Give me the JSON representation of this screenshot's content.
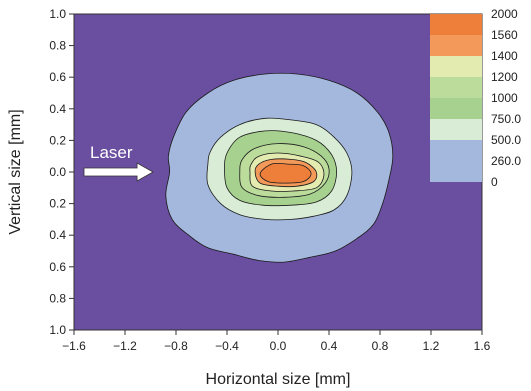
{
  "chart_data": {
    "type": "heatmap",
    "subtype": "filled-contour",
    "title": "",
    "xlabel": "Horizontal size [mm]",
    "ylabel": "Vertical size [mm]",
    "xlim": [
      -1.6,
      1.6
    ],
    "ylim": [
      -1.0,
      1.0
    ],
    "x_ticks": [
      "-1.6",
      "-1.2",
      "-0.8",
      "-0.4",
      "0.0",
      "0.4",
      "0.8",
      "1.2",
      "1.6"
    ],
    "y_ticks": [
      "1.0",
      "0.8",
      "0.6",
      "0.4",
      "0.2",
      "0.0",
      "0.2",
      "0.4",
      "0.6",
      "0.8",
      "1.0"
    ],
    "grid": false,
    "legend_position": "top-right",
    "levels": [
      {
        "label": "2000",
        "color": "#ee7f3b"
      },
      {
        "label": "1560",
        "color": "#f39a5b"
      },
      {
        "label": "1400",
        "color": "#e3ebb0"
      },
      {
        "label": "1200",
        "color": "#bcdc9c"
      },
      {
        "label": "1000",
        "color": "#a6d18f"
      },
      {
        "label": "750.0",
        "color": "#d8ecd6"
      },
      {
        "label": "500.0",
        "color": "#a4b7dc"
      },
      {
        "label": "260.0",
        "color": "#a4b7dc"
      },
      {
        "label": "0",
        "color": "#6a4ea0"
      }
    ],
    "contours": [
      {
        "level": "260.0",
        "color": "#a4b7dc",
        "points": [
          [
            -0.85,
            0.0
          ],
          [
            -0.88,
            -0.15
          ],
          [
            -0.83,
            -0.3
          ],
          [
            -0.7,
            -0.4
          ],
          [
            -0.55,
            -0.48
          ],
          [
            -0.35,
            -0.52
          ],
          [
            -0.15,
            -0.56
          ],
          [
            0.05,
            -0.57
          ],
          [
            0.25,
            -0.54
          ],
          [
            0.45,
            -0.5
          ],
          [
            0.62,
            -0.42
          ],
          [
            0.75,
            -0.33
          ],
          [
            0.82,
            -0.2
          ],
          [
            0.87,
            -0.05
          ],
          [
            0.9,
            0.1
          ],
          [
            0.87,
            0.25
          ],
          [
            0.78,
            0.38
          ],
          [
            0.62,
            0.5
          ],
          [
            0.4,
            0.58
          ],
          [
            0.15,
            0.62
          ],
          [
            -0.1,
            0.62
          ],
          [
            -0.35,
            0.58
          ],
          [
            -0.55,
            0.5
          ],
          [
            -0.72,
            0.38
          ],
          [
            -0.82,
            0.22
          ],
          [
            -0.86,
            0.1
          ]
        ]
      },
      {
        "level": "750.0",
        "color": "#d8ecd6",
        "points": [
          [
            -0.55,
            0.05
          ],
          [
            -0.55,
            -0.08
          ],
          [
            -0.45,
            -0.2
          ],
          [
            -0.3,
            -0.27
          ],
          [
            -0.1,
            -0.3
          ],
          [
            0.1,
            -0.3
          ],
          [
            0.28,
            -0.28
          ],
          [
            0.44,
            -0.24
          ],
          [
            0.54,
            -0.15
          ],
          [
            0.58,
            0.0
          ],
          [
            0.54,
            0.12
          ],
          [
            0.44,
            0.22
          ],
          [
            0.3,
            0.3
          ],
          [
            0.1,
            0.33
          ],
          [
            -0.1,
            0.34
          ],
          [
            -0.3,
            0.3
          ],
          [
            -0.45,
            0.22
          ],
          [
            -0.53,
            0.13
          ]
        ]
      },
      {
        "level": "1000",
        "color": "#a6d18f",
        "points": [
          [
            -0.42,
            0.02
          ],
          [
            -0.4,
            -0.1
          ],
          [
            -0.3,
            -0.18
          ],
          [
            -0.12,
            -0.21
          ],
          [
            0.1,
            -0.21
          ],
          [
            0.3,
            -0.19
          ],
          [
            0.42,
            -0.12
          ],
          [
            0.46,
            0.0
          ],
          [
            0.42,
            0.11
          ],
          [
            0.3,
            0.2
          ],
          [
            0.1,
            0.25
          ],
          [
            -0.1,
            0.26
          ],
          [
            -0.3,
            0.22
          ],
          [
            -0.4,
            0.12
          ]
        ]
      },
      {
        "level": "1200",
        "color": "#bcdc9c",
        "points": [
          [
            -0.3,
            0.0
          ],
          [
            -0.28,
            -0.1
          ],
          [
            -0.15,
            -0.15
          ],
          [
            0.05,
            -0.16
          ],
          [
            0.25,
            -0.14
          ],
          [
            0.37,
            -0.07
          ],
          [
            0.4,
            0.02
          ],
          [
            0.34,
            0.1
          ],
          [
            0.2,
            0.16
          ],
          [
            0.0,
            0.18
          ],
          [
            -0.18,
            0.15
          ],
          [
            -0.28,
            0.08
          ]
        ]
      },
      {
        "level": "1400",
        "color": "#e3ebb0",
        "points": [
          [
            -0.22,
            0.0
          ],
          [
            -0.2,
            -0.09
          ],
          [
            -0.05,
            -0.12
          ],
          [
            0.12,
            -0.12
          ],
          [
            0.3,
            -0.1
          ],
          [
            0.36,
            -0.02
          ],
          [
            0.32,
            0.06
          ],
          [
            0.18,
            0.1
          ],
          [
            0.0,
            0.12
          ],
          [
            -0.15,
            0.1
          ],
          [
            -0.21,
            0.05
          ]
        ]
      },
      {
        "level": "1560",
        "color": "#f39a5b",
        "points": [
          [
            -0.18,
            0.0
          ],
          [
            -0.14,
            -0.07
          ],
          [
            0.0,
            -0.09
          ],
          [
            0.15,
            -0.09
          ],
          [
            0.28,
            -0.06
          ],
          [
            0.3,
            0.0
          ],
          [
            0.22,
            0.06
          ],
          [
            0.1,
            0.08
          ],
          [
            -0.05,
            0.08
          ],
          [
            -0.15,
            0.05
          ]
        ]
      },
      {
        "level": "2000",
        "color": "#ee7f3b",
        "points": [
          [
            -0.14,
            -0.01
          ],
          [
            -0.08,
            -0.06
          ],
          [
            0.05,
            -0.07
          ],
          [
            0.2,
            -0.06
          ],
          [
            0.26,
            -0.01
          ],
          [
            0.2,
            0.04
          ],
          [
            0.08,
            0.05
          ],
          [
            -0.05,
            0.05
          ]
        ]
      }
    ],
    "annotations": [
      {
        "text": "Laser",
        "arrow_tip": [
          -0.98,
          0.0
        ]
      }
    ]
  }
}
